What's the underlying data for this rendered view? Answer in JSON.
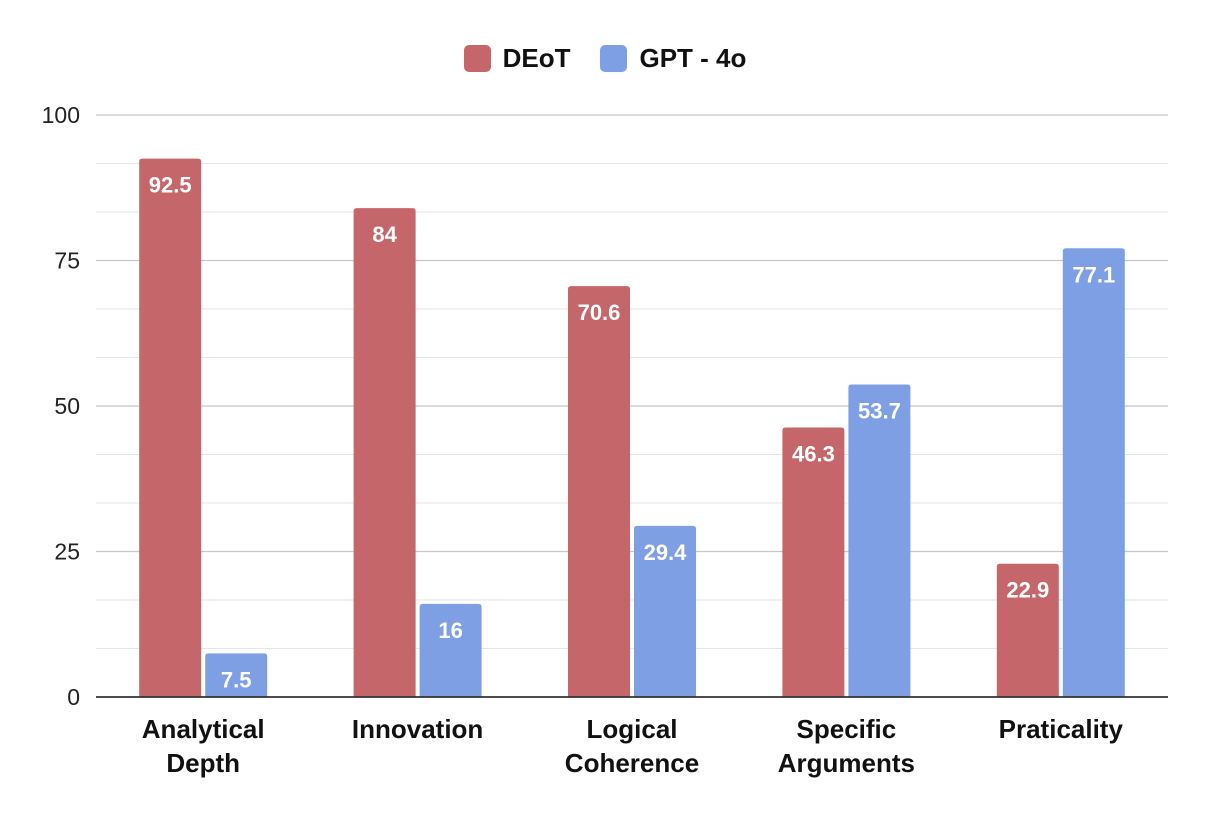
{
  "chart_data": {
    "type": "bar",
    "title": "",
    "xlabel": "",
    "ylabel": "",
    "categories": [
      [
        "Analytical",
        "Depth"
      ],
      [
        "Innovation"
      ],
      [
        "Logical",
        "Coherence"
      ],
      [
        "Specific",
        "Arguments"
      ],
      [
        "Praticality"
      ]
    ],
    "series": [
      {
        "name": "DEoT",
        "color": "#C5666A",
        "values": [
          92.5,
          84,
          70.6,
          46.3,
          22.9
        ],
        "labels": [
          "92.5",
          "84",
          "70.6",
          "46.3",
          "22.9"
        ]
      },
      {
        "name": "GPT - 4o",
        "color": "#7F9FE5",
        "values": [
          7.5,
          16,
          29.4,
          53.7,
          77.1
        ],
        "labels": [
          "7.5",
          "16",
          "29.4",
          "53.7",
          "77.1"
        ]
      }
    ],
    "ylim": [
      0,
      100
    ],
    "yticks": [
      0,
      25,
      50,
      75,
      100
    ],
    "ytick_labels": [
      "0",
      "25",
      "50",
      "75",
      "100"
    ],
    "minor_grid_step": 8.333,
    "grid": true,
    "legend_position": "top-center"
  }
}
